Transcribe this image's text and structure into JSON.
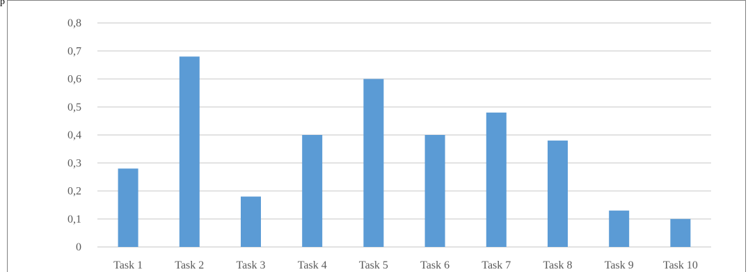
{
  "edge_text": "p",
  "chart_data": {
    "type": "bar",
    "title": "",
    "xlabel": "",
    "ylabel": "",
    "categories": [
      "Task 1",
      "Task 2",
      "Task 3",
      "Task 4",
      "Task 5",
      "Task 6",
      "Task 7",
      "Task 8",
      "Task 9",
      "Task 10"
    ],
    "values": [
      0.28,
      0.68,
      0.18,
      0.4,
      0.6,
      0.4,
      0.48,
      0.38,
      0.13,
      0.1
    ],
    "ylim": [
      0,
      0.8
    ],
    "yticks": [
      "0",
      "0,1",
      "0,2",
      "0,3",
      "0,4",
      "0,5",
      "0,6",
      "0,7",
      "0,8"
    ],
    "grid": true,
    "legend": "none",
    "bar_color": "#5b9bd5",
    "grid_color": "#d9d9d9"
  }
}
